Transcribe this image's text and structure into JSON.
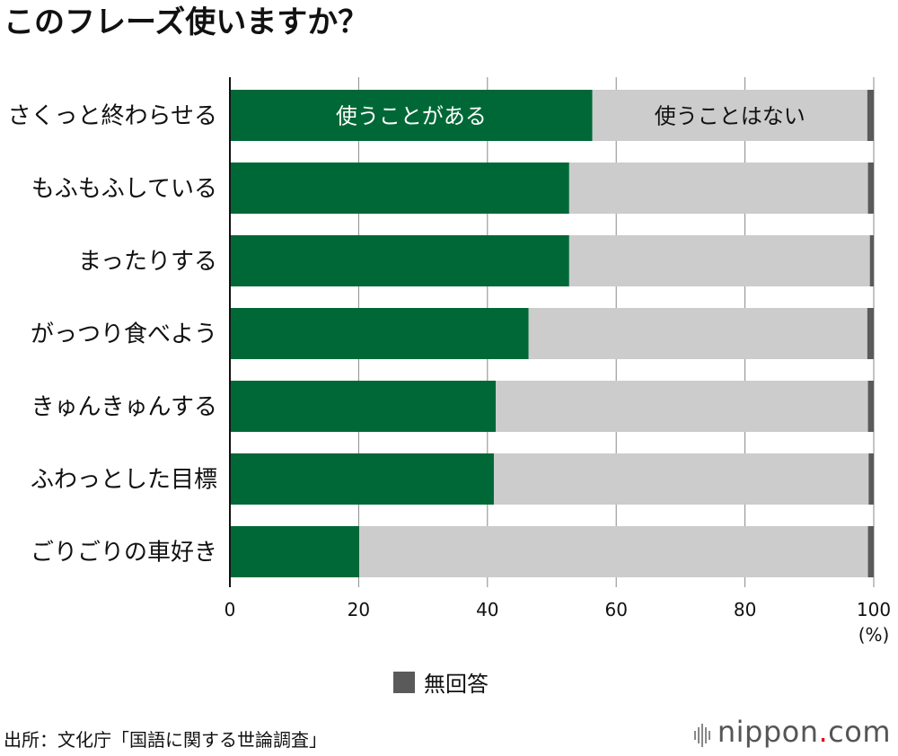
{
  "title": "このフレーズ使いますか？",
  "source": "出所：文化庁「国語に関する世論調査」",
  "logo": {
    "name": "nippon",
    "dot": ".",
    "suffix": "com"
  },
  "legend": {
    "no_answer": "無回答"
  },
  "segment_labels": {
    "use": "使うことがある",
    "not_use": "使うことはない"
  },
  "colors": {
    "use": "#006837",
    "not_use": "#cccccc",
    "no_answer": "#5a5a5a",
    "axis": "#111111",
    "grid": "#888888"
  },
  "chart_data": {
    "type": "bar",
    "orientation": "horizontal",
    "stacked": true,
    "categories": [
      "さくっと終わらせる",
      "もふもふしている",
      "まったりする",
      "がっつり食べよう",
      "きゅんきゅんする",
      "ふわっとした目標",
      "ごりごりの車好き"
    ],
    "series": [
      {
        "name": "使うことがある",
        "values": [
          56.3,
          52.7,
          52.7,
          46.4,
          41.3,
          41.0,
          20.1
        ]
      },
      {
        "name": "使うことはない",
        "values": [
          42.7,
          46.4,
          46.7,
          52.6,
          57.8,
          58.2,
          79.0
        ]
      },
      {
        "name": "無回答",
        "values": [
          1.0,
          0.9,
          0.6,
          1.0,
          0.9,
          0.8,
          0.9
        ]
      }
    ],
    "xlim": [
      0,
      100
    ],
    "xticks": [
      "0",
      "20",
      "40",
      "60",
      "80",
      "100"
    ],
    "xunit": "(%)",
    "grid": true
  }
}
